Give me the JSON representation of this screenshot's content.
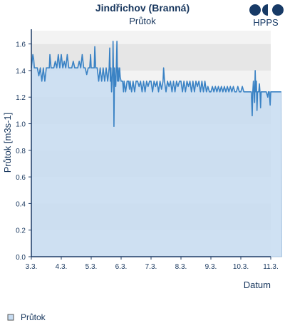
{
  "header": {
    "title": "Jindřichov (Branná)",
    "subtitle": "Průtok",
    "logo_text": "HPPS"
  },
  "legend": {
    "item_label": "Průtok",
    "placement": "bottom-left"
  },
  "colors": {
    "title": "#17365d",
    "line": "#3a82c4",
    "area_fill": "#c7dcf1",
    "band_light": "#f3f3f3",
    "band_dark": "#e6e6e6",
    "axis": "#1f3c66",
    "logo": "#173a66"
  },
  "chart_data": {
    "type": "area",
    "title": "Průtok",
    "xlabel": "Datum",
    "ylabel": "Průtok [m3s-1]",
    "x_ticks": [
      "3.3.",
      "4.3.",
      "5.3.",
      "6.3.",
      "7.3.",
      "8.3.",
      "9.3.",
      "10.3.",
      "11.3."
    ],
    "y_ticks": [
      "0.0",
      "0.2",
      "0.4",
      "0.6",
      "0.8",
      "1.0",
      "1.2",
      "1.4",
      "1.6"
    ],
    "xlim_days": [
      0,
      8
    ],
    "ylim": [
      0,
      1.7
    ],
    "grid": "horizontal bands",
    "legend_position": "bottom-left",
    "series": [
      {
        "name": "Průtok",
        "points": [
          [
            0.0,
            1.42
          ],
          [
            0.05,
            1.52
          ],
          [
            0.08,
            1.48
          ],
          [
            0.1,
            1.42
          ],
          [
            0.2,
            1.42
          ],
          [
            0.25,
            1.36
          ],
          [
            0.3,
            1.42
          ],
          [
            0.35,
            1.32
          ],
          [
            0.4,
            1.42
          ],
          [
            0.45,
            1.32
          ],
          [
            0.5,
            1.42
          ],
          [
            0.6,
            1.42
          ],
          [
            0.62,
            1.52
          ],
          [
            0.66,
            1.42
          ],
          [
            0.75,
            1.42
          ],
          [
            0.8,
            1.47
          ],
          [
            0.85,
            1.42
          ],
          [
            0.9,
            1.52
          ],
          [
            0.95,
            1.42
          ],
          [
            1.0,
            1.52
          ],
          [
            1.05,
            1.42
          ],
          [
            1.1,
            1.47
          ],
          [
            1.15,
            1.42
          ],
          [
            1.2,
            1.52
          ],
          [
            1.25,
            1.42
          ],
          [
            1.35,
            1.42
          ],
          [
            1.4,
            1.47
          ],
          [
            1.45,
            1.42
          ],
          [
            1.55,
            1.42
          ],
          [
            1.6,
            1.47
          ],
          [
            1.65,
            1.42
          ],
          [
            1.7,
            1.52
          ],
          [
            1.75,
            1.42
          ],
          [
            1.8,
            1.42
          ],
          [
            1.85,
            1.37
          ],
          [
            1.9,
            1.42
          ],
          [
            1.95,
            1.42
          ],
          [
            1.98,
            1.52
          ],
          [
            2.0,
            1.42
          ],
          [
            2.1,
            1.42
          ],
          [
            2.12,
            1.58
          ],
          [
            2.15,
            1.42
          ],
          [
            2.2,
            1.42
          ],
          [
            2.25,
            1.32
          ],
          [
            2.3,
            1.42
          ],
          [
            2.35,
            1.32
          ],
          [
            2.4,
            1.42
          ],
          [
            2.45,
            1.32
          ],
          [
            2.5,
            1.42
          ],
          [
            2.55,
            1.32
          ],
          [
            2.6,
            1.42
          ],
          [
            2.62,
            1.57
          ],
          [
            2.64,
            1.32
          ],
          [
            2.66,
            1.42
          ],
          [
            2.68,
            1.24
          ],
          [
            2.7,
            1.32
          ],
          [
            2.72,
            1.42
          ],
          [
            2.73,
            1.62
          ],
          [
            2.75,
            1.32
          ],
          [
            2.76,
            0.98
          ],
          [
            2.78,
            1.42
          ],
          [
            2.8,
            1.32
          ],
          [
            2.82,
            1.28
          ],
          [
            2.84,
            1.42
          ],
          [
            2.86,
            1.62
          ],
          [
            2.88,
            1.32
          ],
          [
            2.9,
            1.42
          ],
          [
            2.92,
            1.32
          ],
          [
            2.95,
            1.42
          ],
          [
            2.97,
            1.35
          ],
          [
            3.0,
            1.32
          ],
          [
            3.05,
            1.32
          ],
          [
            3.08,
            1.24
          ],
          [
            3.1,
            1.32
          ],
          [
            3.15,
            1.24
          ],
          [
            3.2,
            1.32
          ],
          [
            3.25,
            1.32
          ],
          [
            3.28,
            1.26
          ],
          [
            3.3,
            1.32
          ],
          [
            3.35,
            1.24
          ],
          [
            3.4,
            1.32
          ],
          [
            3.45,
            1.24
          ],
          [
            3.5,
            1.32
          ],
          [
            3.55,
            1.32
          ],
          [
            3.6,
            1.28
          ],
          [
            3.65,
            1.32
          ],
          [
            3.7,
            1.24
          ],
          [
            3.75,
            1.32
          ],
          [
            3.8,
            1.24
          ],
          [
            3.85,
            1.32
          ],
          [
            3.9,
            1.28
          ],
          [
            3.95,
            1.32
          ],
          [
            4.0,
            1.32
          ],
          [
            4.05,
            1.24
          ],
          [
            4.1,
            1.32
          ],
          [
            4.15,
            1.28
          ],
          [
            4.2,
            1.32
          ],
          [
            4.25,
            1.24
          ],
          [
            4.3,
            1.32
          ],
          [
            4.35,
            1.26
          ],
          [
            4.4,
            1.32
          ],
          [
            4.42,
            1.42
          ],
          [
            4.45,
            1.32
          ],
          [
            4.5,
            1.24
          ],
          [
            4.55,
            1.32
          ],
          [
            4.6,
            1.28
          ],
          [
            4.65,
            1.32
          ],
          [
            4.7,
            1.24
          ],
          [
            4.75,
            1.32
          ],
          [
            4.8,
            1.24
          ],
          [
            4.85,
            1.32
          ],
          [
            4.9,
            1.28
          ],
          [
            4.95,
            1.32
          ],
          [
            5.0,
            1.32
          ],
          [
            5.05,
            1.24
          ],
          [
            5.1,
            1.32
          ],
          [
            5.15,
            1.24
          ],
          [
            5.2,
            1.32
          ],
          [
            5.25,
            1.28
          ],
          [
            5.3,
            1.32
          ],
          [
            5.35,
            1.24
          ],
          [
            5.4,
            1.32
          ],
          [
            5.45,
            1.24
          ],
          [
            5.5,
            1.32
          ],
          [
            5.55,
            1.28
          ],
          [
            5.6,
            1.32
          ],
          [
            5.65,
            1.24
          ],
          [
            5.7,
            1.32
          ],
          [
            5.75,
            1.24
          ],
          [
            5.8,
            1.32
          ],
          [
            5.85,
            1.24
          ],
          [
            5.9,
            1.28
          ],
          [
            5.95,
            1.24
          ],
          [
            6.0,
            1.24
          ],
          [
            6.05,
            1.28
          ],
          [
            6.1,
            1.24
          ],
          [
            6.15,
            1.28
          ],
          [
            6.2,
            1.24
          ],
          [
            6.25,
            1.28
          ],
          [
            6.3,
            1.24
          ],
          [
            6.35,
            1.28
          ],
          [
            6.4,
            1.24
          ],
          [
            6.45,
            1.28
          ],
          [
            6.5,
            1.24
          ],
          [
            6.55,
            1.28
          ],
          [
            6.6,
            1.24
          ],
          [
            6.65,
            1.28
          ],
          [
            6.7,
            1.24
          ],
          [
            6.75,
            1.28
          ],
          [
            6.8,
            1.24
          ],
          [
            6.85,
            1.24
          ],
          [
            6.9,
            1.28
          ],
          [
            6.95,
            1.24
          ],
          [
            7.0,
            1.24
          ],
          [
            7.05,
            1.28
          ],
          [
            7.1,
            1.24
          ],
          [
            7.15,
            1.24
          ],
          [
            7.2,
            1.24
          ],
          [
            7.25,
            1.24
          ],
          [
            7.3,
            1.24
          ],
          [
            7.35,
            1.24
          ],
          [
            7.38,
            1.06
          ],
          [
            7.4,
            1.24
          ],
          [
            7.42,
            1.32
          ],
          [
            7.44,
            1.24
          ],
          [
            7.46,
            1.16
          ],
          [
            7.48,
            1.4
          ],
          [
            7.5,
            1.24
          ],
          [
            7.52,
            1.32
          ],
          [
            7.54,
            1.1
          ],
          [
            7.56,
            1.24
          ],
          [
            7.6,
            1.24
          ],
          [
            7.62,
            1.3
          ],
          [
            7.64,
            1.24
          ],
          [
            7.66,
            1.12
          ],
          [
            7.68,
            1.24
          ],
          [
            7.7,
            1.24
          ],
          [
            7.75,
            1.24
          ],
          [
            7.8,
            1.24
          ],
          [
            7.85,
            1.24
          ],
          [
            7.9,
            1.2
          ],
          [
            7.92,
            1.24
          ],
          [
            7.95,
            1.24
          ],
          [
            7.98,
            1.14
          ],
          [
            8.0,
            1.24
          ],
          [
            8.1,
            1.24
          ],
          [
            8.2,
            1.24
          ],
          [
            8.3,
            1.24
          ],
          [
            8.35,
            1.24
          ],
          [
            8.37,
            0.0
          ]
        ]
      }
    ]
  }
}
